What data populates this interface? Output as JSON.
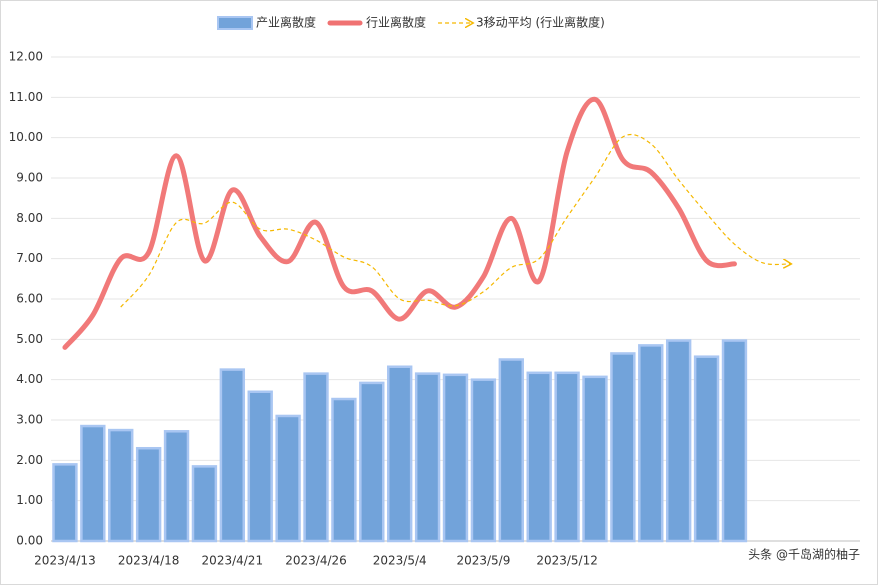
{
  "chart_data": {
    "type": "bar-line",
    "legend_position": "top",
    "grid": true,
    "categories": [
      "2023/4/13",
      null,
      null,
      "2023/4/18",
      null,
      null,
      "2023/4/21",
      null,
      null,
      "2023/4/26",
      null,
      null,
      "2023/5/4",
      null,
      null,
      "2023/5/9",
      null,
      null,
      "2023/5/12",
      null,
      null,
      null,
      null,
      null,
      null,
      null,
      null,
      null,
      null
    ],
    "ylim": [
      0,
      12
    ],
    "yticks": [
      {
        "value": 0,
        "label": "0.00"
      },
      {
        "value": 1,
        "label": "1.00"
      },
      {
        "value": 2,
        "label": "2.00"
      },
      {
        "value": 3,
        "label": "3.00"
      },
      {
        "value": 4,
        "label": "4.00"
      },
      {
        "value": 5,
        "label": "5.00"
      },
      {
        "value": 6,
        "label": "6.00"
      },
      {
        "value": 7,
        "label": "7.00"
      },
      {
        "value": 8,
        "label": "8.00"
      },
      {
        "value": 9,
        "label": "9.00"
      },
      {
        "value": 10,
        "label": "10.00"
      },
      {
        "value": 11,
        "label": "11.00"
      },
      {
        "value": 12,
        "label": "12.00"
      }
    ],
    "series": [
      {
        "name": "产业离散度",
        "kind": "bar",
        "color": "#72a3da",
        "values": [
          1.9,
          2.85,
          2.75,
          2.3,
          2.72,
          1.85,
          4.25,
          3.7,
          3.1,
          4.15,
          3.52,
          3.92,
          4.32,
          4.15,
          4.12,
          4.0,
          4.5,
          4.17,
          4.17,
          4.07,
          4.65,
          4.85,
          4.97,
          4.57,
          4.97,
          null,
          null,
          null,
          null
        ]
      },
      {
        "name": "行业离散度",
        "kind": "smooth-line",
        "color": "#f07272",
        "values": [
          4.8,
          5.6,
          7.0,
          7.15,
          9.55,
          6.95,
          8.7,
          7.55,
          6.93,
          7.9,
          6.3,
          6.2,
          5.5,
          6.2,
          5.8,
          6.55,
          8.0,
          6.45,
          9.65,
          10.95,
          9.45,
          9.15,
          8.25,
          6.95,
          6.87,
          null,
          null,
          null,
          null
        ]
      },
      {
        "name": "3移动平均 (行业离散度)",
        "kind": "dashed-line",
        "color": "#f5b800",
        "values": [
          null,
          null,
          5.8,
          6.58,
          7.9,
          7.88,
          8.4,
          7.73,
          7.73,
          7.46,
          7.04,
          6.8,
          6.0,
          5.97,
          5.83,
          6.18,
          6.78,
          7.0,
          8.03,
          9.02,
          10.02,
          9.85,
          8.95,
          8.12,
          7.36,
          6.9,
          6.87,
          null,
          null
        ]
      }
    ],
    "watermark": "头条 @千岛湖的柚子"
  }
}
